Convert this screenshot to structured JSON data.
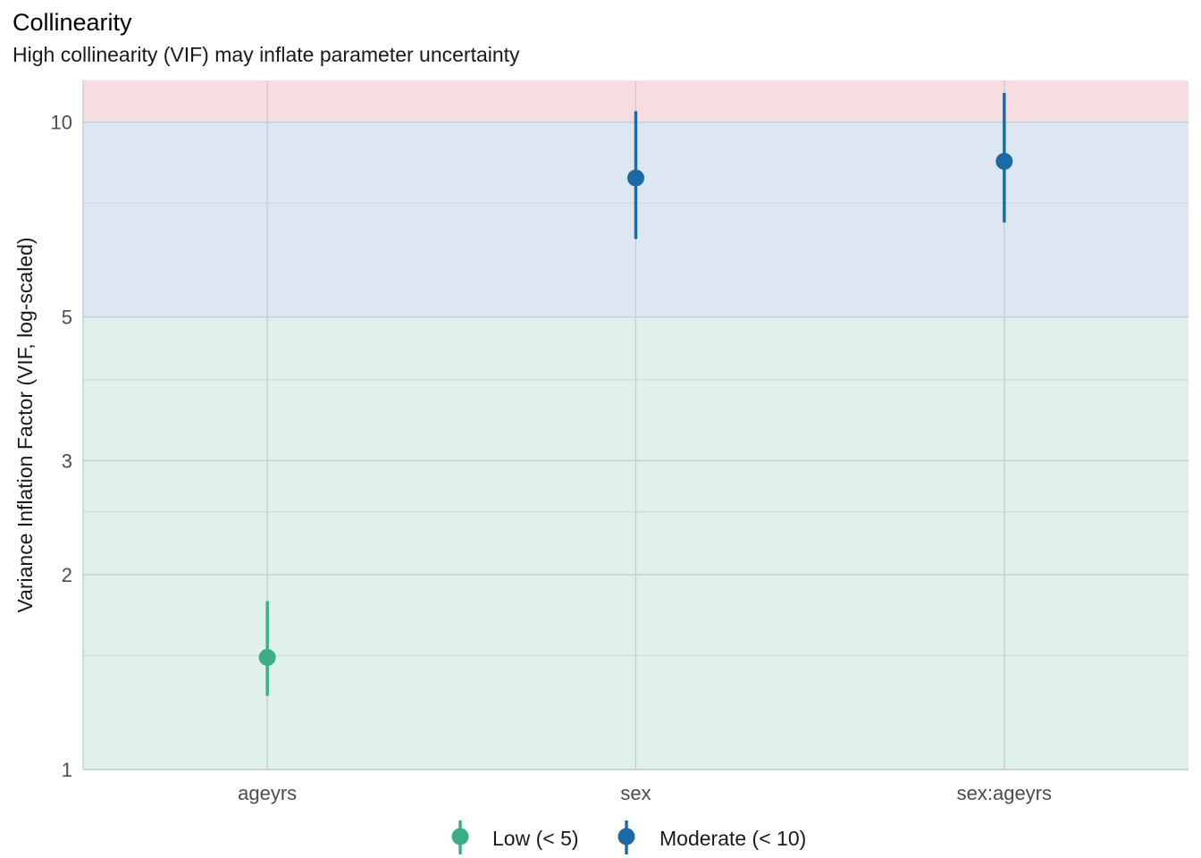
{
  "title": "Collinearity",
  "subtitle": "High collinearity (VIF) may inflate parameter uncertainty",
  "chart_data": {
    "type": "scatter",
    "scale_y": "log",
    "ylabel": "Variance Inflation Factor (VIF, log-scaled)",
    "xlabel": "",
    "ylim": [
      1,
      11.6
    ],
    "y_ticks": [
      1,
      2,
      3,
      5,
      10
    ],
    "y_minor_ticks": [
      1.5,
      2.5,
      4,
      7.5
    ],
    "grid": true,
    "bands": [
      {
        "from": 1,
        "to": 5,
        "color": "#e0f1eb"
      },
      {
        "from": 5,
        "to": 10,
        "color": "#dce7f1"
      },
      {
        "from": 10,
        "to": 11.6,
        "color": "#f8dde0"
      }
    ],
    "categories": [
      "ageyrs",
      "sex",
      "sex:ageyrs"
    ],
    "points": [
      {
        "x": "ageyrs",
        "vif": 1.49,
        "ci_low": 1.3,
        "ci_high": 1.82,
        "group": "Low (< 5)"
      },
      {
        "x": "sex",
        "vif": 8.2,
        "ci_low": 6.6,
        "ci_high": 10.4,
        "group": "Moderate (< 10)"
      },
      {
        "x": "sex:ageyrs",
        "vif": 8.7,
        "ci_low": 7.0,
        "ci_high": 11.1,
        "group": "Moderate (< 10)"
      }
    ],
    "legend": {
      "position": "bottom",
      "entries": [
        {
          "label": "Low (< 5)",
          "color": "#3aaf85"
        },
        {
          "label": "Moderate (< 10)",
          "color": "#1b6aa5"
        }
      ]
    }
  }
}
